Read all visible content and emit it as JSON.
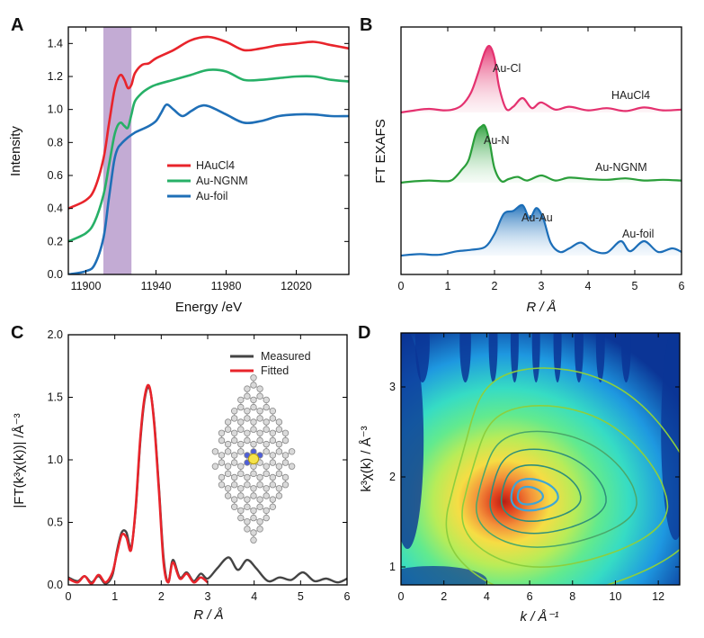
{
  "panels": {
    "A": {
      "letter": "A"
    },
    "B": {
      "letter": "B"
    },
    "C": {
      "letter": "C"
    },
    "D": {
      "letter": "D"
    }
  },
  "chart_data": [
    {
      "id": "A",
      "type": "line",
      "title": "",
      "xlabel": "Energy /eV",
      "ylabel": "Intensity",
      "xlim": [
        11890,
        12050
      ],
      "ylim": [
        0.0,
        1.5
      ],
      "xticks": [
        11900,
        11940,
        11980,
        12020
      ],
      "yticks": [
        0.0,
        0.2,
        0.4,
        0.6,
        0.8,
        1.0,
        1.2,
        1.4
      ],
      "highlight_band": {
        "x": [
          11910,
          11926
        ],
        "color": "#b89ccc"
      },
      "legend": {
        "placement": "center-right",
        "entries": [
          "HAuCl4",
          "Au-NGNM",
          "Au-foil"
        ]
      },
      "series": [
        {
          "name": "HAuCl4",
          "color": "#e8242b",
          "x": [
            11890,
            11900,
            11905,
            11910,
            11913,
            11916,
            11918,
            11920,
            11922,
            11924,
            11926,
            11928,
            11932,
            11936,
            11940,
            11950,
            11960,
            11970,
            11980,
            11990,
            12000,
            12010,
            12020,
            12030,
            12040,
            12050
          ],
          "y": [
            0.4,
            0.45,
            0.52,
            0.7,
            0.9,
            1.1,
            1.18,
            1.21,
            1.18,
            1.13,
            1.15,
            1.22,
            1.27,
            1.28,
            1.31,
            1.36,
            1.42,
            1.44,
            1.41,
            1.36,
            1.37,
            1.39,
            1.4,
            1.41,
            1.39,
            1.37
          ]
        },
        {
          "name": "Au-NGNM",
          "color": "#27b067",
          "x": [
            11890,
            11900,
            11905,
            11910,
            11913,
            11916,
            11918,
            11920,
            11922,
            11924,
            11926,
            11928,
            11932,
            11936,
            11940,
            11950,
            11960,
            11970,
            11980,
            11990,
            12000,
            12010,
            12020,
            12030,
            12040,
            12050
          ],
          "y": [
            0.2,
            0.25,
            0.32,
            0.48,
            0.65,
            0.83,
            0.9,
            0.92,
            0.9,
            0.89,
            0.97,
            1.05,
            1.1,
            1.13,
            1.15,
            1.18,
            1.21,
            1.24,
            1.23,
            1.18,
            1.18,
            1.19,
            1.2,
            1.2,
            1.18,
            1.17
          ]
        },
        {
          "name": "Au-foil",
          "color": "#1f6fb7",
          "x": [
            11890,
            11900,
            11905,
            11910,
            11913,
            11916,
            11918,
            11920,
            11924,
            11928,
            11932,
            11936,
            11940,
            11943,
            11946,
            11950,
            11955,
            11960,
            11965,
            11970,
            11980,
            11990,
            12000,
            12010,
            12020,
            12030,
            12040,
            12050
          ],
          "y": [
            0.0,
            0.02,
            0.06,
            0.22,
            0.45,
            0.68,
            0.76,
            0.79,
            0.83,
            0.86,
            0.88,
            0.9,
            0.93,
            0.98,
            1.03,
            1.0,
            0.96,
            0.99,
            1.02,
            1.02,
            0.97,
            0.92,
            0.93,
            0.96,
            0.97,
            0.97,
            0.96,
            0.96
          ]
        }
      ]
    },
    {
      "id": "B",
      "type": "area",
      "title": "",
      "xlabel": "R / Å",
      "ylabel": "FT EXAFS",
      "xlim": [
        0,
        6
      ],
      "xticks": [
        0,
        1,
        2,
        3,
        4,
        5,
        6
      ],
      "series": [
        {
          "name": "HAuCl4",
          "color": "#e4316f",
          "offset": 2.0,
          "peak": "Au-Cl",
          "x": [
            0.0,
            0.3,
            0.6,
            0.9,
            1.1,
            1.3,
            1.5,
            1.65,
            1.8,
            1.9,
            2.0,
            2.1,
            2.25,
            2.4,
            2.6,
            2.8,
            3.0,
            3.3,
            3.6,
            4.0,
            4.4,
            4.8,
            5.2,
            5.6,
            6.0
          ],
          "y": [
            0.0,
            0.03,
            0.05,
            0.03,
            0.04,
            0.1,
            0.28,
            0.55,
            0.85,
            0.92,
            0.75,
            0.35,
            0.05,
            0.08,
            0.2,
            0.06,
            0.14,
            0.04,
            0.08,
            0.03,
            0.06,
            0.02,
            0.07,
            0.03,
            0.04
          ]
        },
        {
          "name": "Au-NGNM",
          "color": "#2a9e3a",
          "offset": 1.0,
          "peak": "Au-N",
          "x": [
            0.0,
            0.3,
            0.6,
            0.9,
            1.1,
            1.3,
            1.45,
            1.6,
            1.72,
            1.8,
            1.9,
            2.0,
            2.15,
            2.3,
            2.5,
            2.7,
            3.0,
            3.3,
            3.6,
            4.0,
            4.4,
            4.8,
            5.2,
            5.6,
            6.0
          ],
          "y": [
            0.0,
            0.02,
            0.03,
            0.02,
            0.04,
            0.18,
            0.32,
            0.68,
            0.78,
            0.78,
            0.55,
            0.2,
            0.02,
            0.05,
            0.08,
            0.03,
            0.1,
            0.03,
            0.07,
            0.05,
            0.04,
            0.06,
            0.03,
            0.04,
            0.03
          ]
        },
        {
          "name": "Au-foil",
          "color": "#1c6eb8",
          "offset": 0.0,
          "peak": "Au-Au",
          "x": [
            0.0,
            0.4,
            0.8,
            1.2,
            1.5,
            1.8,
            2.0,
            2.2,
            2.4,
            2.6,
            2.75,
            2.9,
            3.05,
            3.2,
            3.4,
            3.6,
            3.85,
            4.1,
            4.4,
            4.7,
            4.9,
            5.2,
            5.5,
            5.8,
            6.0
          ],
          "y": [
            0.0,
            0.02,
            0.01,
            0.06,
            0.08,
            0.12,
            0.3,
            0.58,
            0.62,
            0.7,
            0.52,
            0.66,
            0.5,
            0.18,
            0.05,
            0.1,
            0.18,
            0.07,
            0.04,
            0.2,
            0.06,
            0.2,
            0.05,
            0.1,
            0.05
          ]
        }
      ],
      "annotations": [
        "Au-Cl",
        "HAuCl4",
        "Au-N",
        "Au-NGNM",
        "Au-Au",
        "Au-foil"
      ]
    },
    {
      "id": "C",
      "type": "line",
      "title": "",
      "xlabel": "R / Å",
      "ylabel": "|FT(k³χ(k))| /Å⁻³",
      "xlim": [
        0,
        6
      ],
      "ylim": [
        0.0,
        2.0
      ],
      "xticks": [
        0,
        1,
        2,
        3,
        4,
        5,
        6
      ],
      "yticks": [
        0.0,
        0.5,
        1.0,
        1.5,
        2.0
      ],
      "legend": {
        "placement": "top-right",
        "entries": [
          "Measured",
          "Fitted"
        ]
      },
      "series": [
        {
          "name": "Measured",
          "color": "#444444",
          "x": [
            0.0,
            0.2,
            0.35,
            0.5,
            0.65,
            0.8,
            0.95,
            1.05,
            1.15,
            1.25,
            1.35,
            1.45,
            1.55,
            1.65,
            1.75,
            1.85,
            1.95,
            2.05,
            2.15,
            2.25,
            2.4,
            2.55,
            2.7,
            2.85,
            3.0,
            3.2,
            3.45,
            3.65,
            3.85,
            4.05,
            4.3,
            4.55,
            4.8,
            5.05,
            5.3,
            5.55,
            5.8,
            6.0
          ],
          "y": [
            0.06,
            0.03,
            0.07,
            0.02,
            0.07,
            0.01,
            0.08,
            0.28,
            0.42,
            0.42,
            0.3,
            0.6,
            1.15,
            1.5,
            1.57,
            1.3,
            0.78,
            0.22,
            0.02,
            0.2,
            0.06,
            0.1,
            0.03,
            0.09,
            0.05,
            0.13,
            0.22,
            0.12,
            0.2,
            0.13,
            0.03,
            0.06,
            0.04,
            0.1,
            0.03,
            0.05,
            0.02,
            0.05
          ]
        },
        {
          "name": "Fitted",
          "color": "#e8242b",
          "x": [
            0.0,
            0.2,
            0.35,
            0.5,
            0.65,
            0.8,
            0.95,
            1.05,
            1.15,
            1.25,
            1.35,
            1.45,
            1.55,
            1.65,
            1.75,
            1.85,
            1.95,
            2.05,
            2.15,
            2.25,
            2.4,
            2.55,
            2.7,
            2.85,
            3.0
          ],
          "y": [
            0.05,
            0.02,
            0.07,
            0.01,
            0.08,
            0.02,
            0.1,
            0.26,
            0.4,
            0.38,
            0.28,
            0.62,
            1.18,
            1.52,
            1.58,
            1.28,
            0.75,
            0.18,
            0.02,
            0.18,
            0.05,
            0.09,
            0.02,
            0.06,
            0.02
          ]
        }
      ]
    },
    {
      "id": "D",
      "type": "heatmap",
      "title": "",
      "xlabel": "k / Å⁻¹",
      "ylabel": "k³χ(k) / Å⁻³",
      "xlim": [
        0,
        13
      ],
      "ylim": [
        0.8,
        3.6
      ],
      "xticks": [
        0,
        2,
        4,
        6,
        8,
        10,
        12
      ],
      "yticks": [
        1,
        2,
        3
      ],
      "maximum": {
        "k": 5.8,
        "R": 1.78
      },
      "colorscale": [
        "#0a2a8a",
        "#1c6fd6",
        "#2fc4e0",
        "#3fe8b8",
        "#a8ee5a",
        "#f4e23a",
        "#f08a2a",
        "#d4301e"
      ]
    }
  ]
}
